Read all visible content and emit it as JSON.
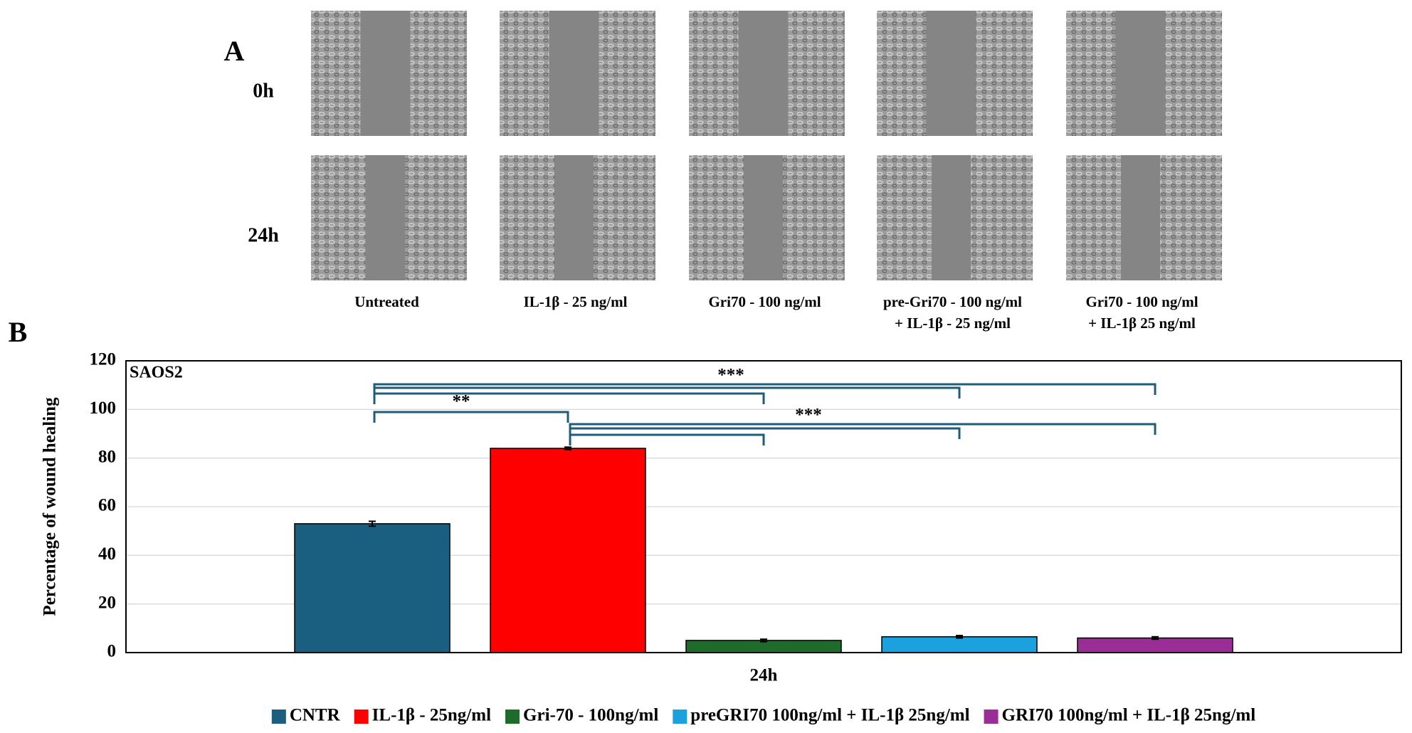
{
  "panel_a": {
    "label": "A",
    "rows": [
      "0h",
      "24h"
    ],
    "columns": [
      [
        "Untreated"
      ],
      [
        "IL-1β - 25 ng/ml"
      ],
      [
        "Gri70 - 100 ng/ml"
      ],
      [
        "pre-Gri70 - 100 ng/ml",
        "+ IL-1β - 25 ng/ml"
      ],
      [
        "Gri70 - 100 ng/ml",
        "+ IL-1β 25 ng/ml"
      ]
    ]
  },
  "chart_data": {
    "type": "bar",
    "panel_label": "B",
    "annotation": "SAOS2",
    "ylabel": "Percentage of wound healing",
    "categories": [
      "24h"
    ],
    "series": [
      {
        "name": "CNTR",
        "color": "#1a5e80",
        "values": [
          53
        ],
        "errors": [
          1
        ]
      },
      {
        "name": "IL-1β - 25ng/ml",
        "color": "#ff0000",
        "values": [
          84
        ],
        "errors": [
          0.5
        ]
      },
      {
        "name": "Gri-70 - 100ng/ml",
        "color": "#1e6b2a",
        "values": [
          5
        ],
        "errors": [
          0.5
        ]
      },
      {
        "name": "preGRI70 100ng/ml + IL-1β 25ng/ml",
        "color": "#1ba1dd",
        "values": [
          6.5
        ],
        "errors": [
          0.5
        ]
      },
      {
        "name": "GRI70 100ng/ml + IL-1β 25ng/ml",
        "color": "#9b2d96",
        "values": [
          6
        ],
        "errors": [
          0.5
        ]
      }
    ],
    "ylim": [
      0,
      120
    ],
    "yticks": [
      0,
      20,
      40,
      60,
      80,
      100,
      120
    ],
    "grid": true,
    "legend": "bottom",
    "significance": [
      "**",
      "***",
      "***"
    ]
  }
}
